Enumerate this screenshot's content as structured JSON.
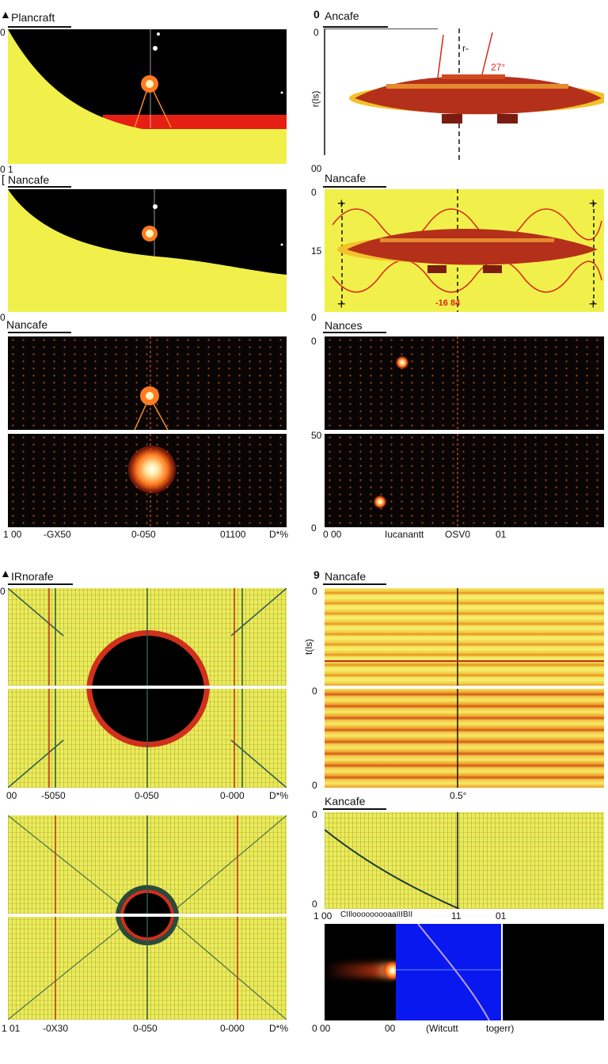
{
  "panels": {
    "p1": {
      "marker": "▲",
      "title": "Plancraft"
    },
    "p2": {
      "marker": "0",
      "title": "Ancafe",
      "annot_a": "r-",
      "annot_b": "27°"
    },
    "p3": {
      "marker": "[",
      "title": "Nancafe"
    },
    "p4": {
      "title": "Nancafe",
      "inner_label": "-16 84"
    },
    "p5": {
      "title": "Nancafe"
    },
    "p6": {
      "title": "Nances"
    },
    "p7": {
      "marker": "▲",
      "title": "IRnorafe"
    },
    "p8": {
      "marker": "9",
      "title": "Nancafe"
    },
    "p9": {
      "title": "Kancafe"
    }
  },
  "top_ticks_left": [
    "0",
    "0 1",
    "0"
  ],
  "top_ticks_right": [
    "0",
    "r(ls)",
    "0",
    "00",
    "15",
    "0",
    "0",
    "0",
    "50",
    "0"
  ],
  "bottom_axis_upper_left": [
    "1 00",
    "-GX50",
    "0-050",
    "01100",
    "D*%"
  ],
  "bottom_axis_upper_right": [
    "0 00",
    "Iucanantt",
    "OSV0",
    "01"
  ],
  "yaxis_right_upper": [
    "0",
    "0",
    "0",
    "0",
    "0"
  ],
  "bottom_axis_mid_left": [
    "00",
    "-5050",
    "0-050",
    "0-000",
    "D*%"
  ],
  "bottom_axis_mid_right": [
    "0",
    "0.5°"
  ],
  "bottom_axis_low_left": [
    "1 01",
    "-0X30",
    "0-050",
    "0-000",
    "D*%"
  ],
  "bottom_axis_low_right": [
    "0 00",
    "00",
    "(Witcutt",
    "togerr)"
  ],
  "axis_mid_right_row": [
    "1 00",
    "CIIlooooooooaaIIIBII",
    "11",
    "01"
  ],
  "side_labels": [
    "r(ls)",
    "t(ls)"
  ],
  "colors": {
    "yellow": "#f1f04a",
    "black": "#000000",
    "red": "#e51f14",
    "blue": "#0a18f0",
    "ship": "#b5301a"
  }
}
